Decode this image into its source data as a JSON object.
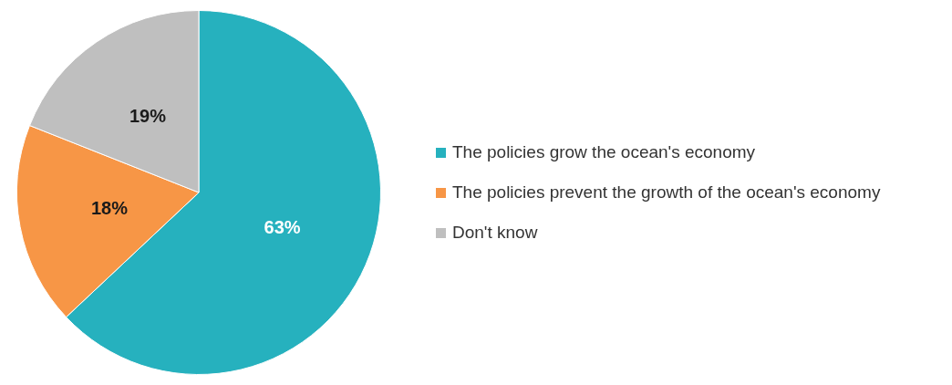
{
  "chart_data": {
    "type": "pie",
    "categories": [
      "The policies grow the ocean's economy",
      "The policies prevent the growth of the ocean's economy",
      "Don't know"
    ],
    "values": [
      63,
      18,
      19
    ],
    "colors": [
      "#26b1be",
      "#f79646",
      "#bfbfbf"
    ],
    "value_labels": [
      "63%",
      "18%",
      "19%"
    ],
    "legend": "right"
  }
}
